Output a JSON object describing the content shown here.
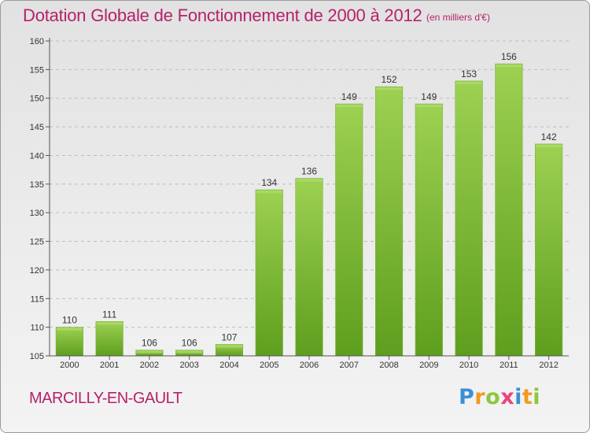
{
  "title": "Dotation Globale de Fonctionnement de 2000 à 2012",
  "unit_note": "(en milliers d'€)",
  "place_name": "MARCILLY-EN-GAULT",
  "logo": {
    "text": "Proxiti",
    "letters": [
      {
        "ch": "P",
        "color": "#3b8fd6"
      },
      {
        "ch": "r",
        "color": "#f29a1e"
      },
      {
        "ch": "o",
        "color": "#8dc63f"
      },
      {
        "ch": "x",
        "color": "#e8457c"
      },
      {
        "ch": "i",
        "color": "#3b8fd6"
      },
      {
        "ch": "t",
        "color": "#f29a1e"
      },
      {
        "ch": "i",
        "color": "#8dc63f"
      }
    ]
  },
  "colors": {
    "title": "#b5216b",
    "bar_top": "#9dd152",
    "bar_bottom": "#5e9e1e",
    "bar_edge": "#7ab33a",
    "axis": "#555555",
    "grid": "#bdbdbd",
    "text": "#333333"
  },
  "chart_data": {
    "type": "bar",
    "title": "Dotation Globale de Fonctionnement de 2000 à 2012",
    "categories": [
      "2000",
      "2001",
      "2002",
      "2003",
      "2004",
      "2005",
      "2006",
      "2007",
      "2008",
      "2009",
      "2010",
      "2011",
      "2012"
    ],
    "values": [
      110,
      111,
      106,
      106,
      107,
      134,
      136,
      149,
      152,
      149,
      153,
      156,
      142
    ],
    "xlabel": "",
    "ylabel": "",
    "ylim": [
      105,
      160
    ],
    "yticks": [
      105,
      110,
      115,
      120,
      125,
      130,
      135,
      140,
      145,
      150,
      155,
      160
    ],
    "grid": true,
    "legend": "none",
    "data_labels": true
  }
}
